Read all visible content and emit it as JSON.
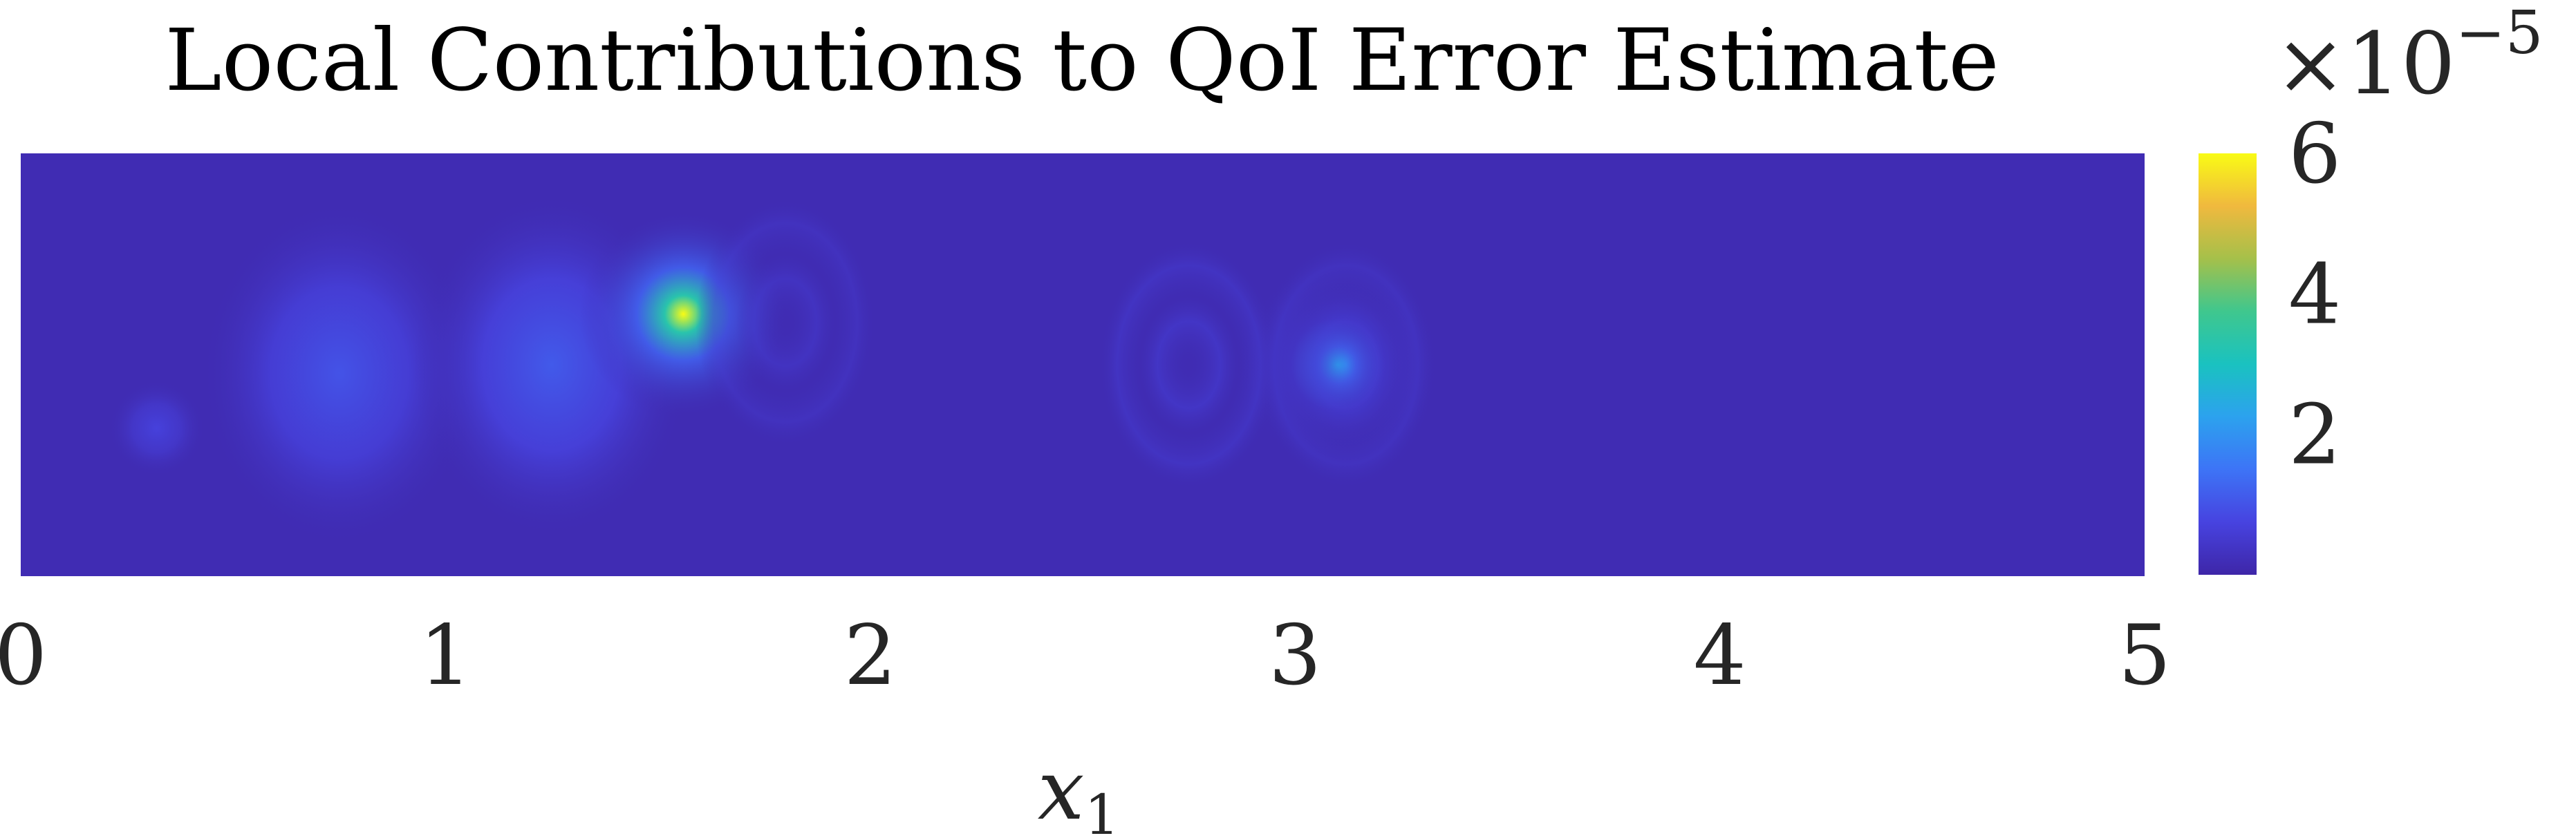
{
  "chart_data": {
    "type": "heatmap",
    "title": "Local Contributions to QoI Error Estimate",
    "xlabel": "x",
    "xlabel_subscript": "1",
    "ylabel": "",
    "xlim": [
      0,
      5
    ],
    "x_ticks": [
      0,
      1,
      2,
      3,
      4,
      5
    ],
    "x_tick_labels": [
      "0",
      "1",
      "2",
      "3",
      "4",
      "5"
    ],
    "colorbar": {
      "min": 0,
      "max": 6,
      "ticks": [
        2,
        4,
        6
      ],
      "tick_labels": [
        "2",
        "4",
        "6"
      ],
      "multiplier_prefix": "×10",
      "multiplier_exponent": "−5",
      "colormap": "parula"
    },
    "background_value": 0.15,
    "features": [
      {
        "x": 1.56,
        "y": 0.62,
        "peak": 6.0,
        "kind": "peak"
      },
      {
        "x": 3.1,
        "y": 0.5,
        "peak": 2.2,
        "kind": "peak"
      },
      {
        "x": 0.75,
        "y": 0.48,
        "peak": 1.0,
        "kind": "blob"
      },
      {
        "x": 1.25,
        "y": 0.5,
        "peak": 1.1,
        "kind": "blob"
      },
      {
        "x": 0.32,
        "y": 0.35,
        "peak": 0.7,
        "kind": "blob"
      },
      {
        "x": 2.75,
        "y": 0.5,
        "peak": 0.6,
        "kind": "ring"
      },
      {
        "x": 3.12,
        "y": 0.5,
        "peak": 0.5,
        "kind": "ring"
      },
      {
        "x": 1.8,
        "y": 0.6,
        "peak": 0.5,
        "kind": "ring"
      }
    ]
  },
  "colors": {
    "parula": [
      "#3e26a8",
      "#4743e0",
      "#3d74f6",
      "#2ca2ee",
      "#1ac2c0",
      "#3fc78e",
      "#a5c04a",
      "#f0b93e",
      "#f9fb15"
    ]
  }
}
